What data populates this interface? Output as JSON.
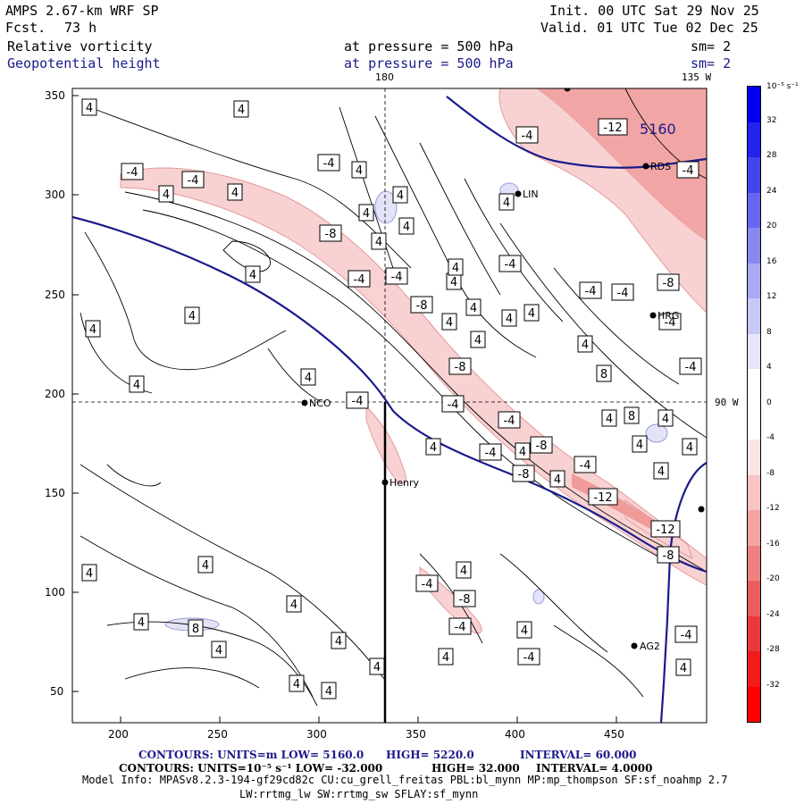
{
  "header": {
    "model": "AMPS 2.67-km WRF SP",
    "fcst_label": "Fcst.",
    "fcst_value": "73 h",
    "field1": "Relative vorticity",
    "field2": "Geopotential height",
    "pressure1": "at pressure =  500 hPa",
    "pressure2": "at pressure =  500 hPa",
    "sm1": "sm= 2",
    "sm2": "sm= 2",
    "init": "Init. 00 UTC Sat 29 Nov 25",
    "valid": "Valid. 01 UTC Tue 02 Dec 25"
  },
  "map": {
    "lon_label_180": "180",
    "lon_label_135w": "135 W",
    "lon_label_90w": "90 W",
    "x_ticks": [
      "200",
      "250",
      "300",
      "350",
      "400",
      "450"
    ],
    "y_ticks": [
      "350",
      "300",
      "250",
      "200",
      "150",
      "100",
      "50"
    ],
    "height_contour_label": "5160",
    "stations": {
      "nco": "NCO",
      "henry": "Henry",
      "ag2": "AG2",
      "rds": "RDS",
      "hrg": "HRG",
      "lin": "LIN"
    },
    "vort_labels": {
      "pos4": "4",
      "pos8": "8",
      "neg4": "-4",
      "neg8": "-8",
      "neg12": "-12"
    }
  },
  "colorbar": {
    "units": "10⁻⁵ s⁻¹",
    "labels": [
      "32",
      "28",
      "24",
      "20",
      "16",
      "12",
      "8",
      "4",
      "0",
      "-4",
      "-8",
      "-12",
      "-16",
      "-20",
      "-24",
      "-28",
      "-32"
    ],
    "colors": {
      "pos_strong": "#0000ee",
      "pos_weak": "#e6e6fa",
      "neg_weak": "#fbe4e4",
      "neg_strong": "#ff0000"
    }
  },
  "footer": {
    "line1_left": "CONTOURS:  UNITS=m  LOW=  5160.0",
    "line1_high": "HIGH=  5220.0",
    "line1_int": "INTERVAL=   60.000",
    "line2_left": "CONTOURS:  UNITS=10⁻⁵ s⁻¹   LOW=  -32.000",
    "line2_high": "HIGH=  32.000",
    "line2_int": "INTERVAL=   4.0000",
    "model_info": "Model Info: MPASv8.2.3-194-gf29cd82c CU:cu_grell_freitas PBL:bl_mynn MP:mp_thompson SF:sf_noahmp 2.7",
    "model_info2": "LW:rrtmg_lw SW:rrtmg_sw SFLAY:sf_mynn"
  }
}
